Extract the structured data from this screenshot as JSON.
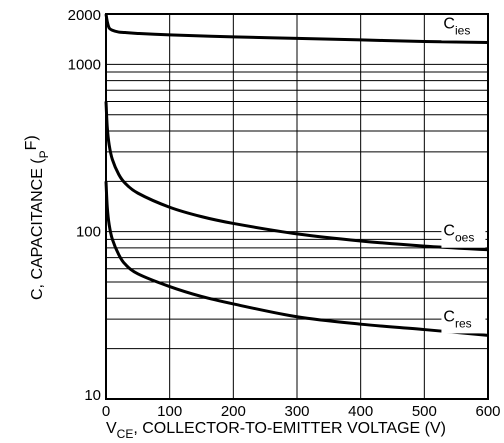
{
  "chart_data": {
    "type": "line",
    "title": "",
    "xlabel": {
      "main": "V",
      "sub": "CE",
      "rest": ", COLLECTOR-TO-EMITTER VOLTAGE (V)"
    },
    "ylabel": {
      "main": "C, CAPACITANCE  (",
      "sub": "P",
      "rest": "F)"
    },
    "xlim": [
      0,
      600
    ],
    "ylim": [
      10,
      2000
    ],
    "yscale": "log",
    "grid": true,
    "x_ticks": [
      "0",
      "100",
      "200",
      "300",
      "400",
      "500",
      "600"
    ],
    "y_ticks": [
      {
        "value": 10,
        "label": "10"
      },
      {
        "value": 100,
        "label": "100"
      },
      {
        "value": 1000,
        "label": "1000"
      },
      {
        "value": 2000,
        "label": "2000"
      }
    ],
    "series": [
      {
        "name": {
          "main": "C",
          "sub": "ies"
        },
        "x": [
          0,
          2,
          5,
          10,
          20,
          30,
          50,
          100,
          200,
          300,
          400,
          500,
          600
        ],
        "y": [
          2000,
          1800,
          1650,
          1600,
          1560,
          1550,
          1530,
          1500,
          1460,
          1430,
          1400,
          1370,
          1350
        ]
      },
      {
        "name": {
          "main": "C",
          "sub": "oes"
        },
        "x": [
          0,
          2,
          5,
          10,
          20,
          30,
          50,
          100,
          150,
          200,
          300,
          400,
          500,
          600
        ],
        "y": [
          600,
          420,
          330,
          270,
          220,
          195,
          170,
          140,
          123,
          112,
          97,
          88,
          82,
          78
        ]
      },
      {
        "name": {
          "main": "C",
          "sub": "res"
        },
        "x": [
          0,
          2,
          5,
          10,
          20,
          30,
          50,
          100,
          150,
          200,
          300,
          400,
          500,
          600
        ],
        "y": [
          200,
          140,
          110,
          90,
          73,
          64,
          56,
          47,
          41,
          37,
          31,
          28,
          26,
          24
        ]
      }
    ]
  }
}
